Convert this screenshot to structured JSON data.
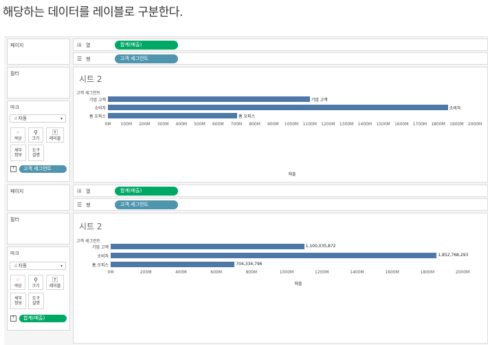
{
  "heading": "해당하는 데이터를 레이블로 구분한다.",
  "panels": [
    {
      "pages_label": "페이지",
      "filters_label": "필터",
      "marks_label": "마크",
      "marks_type": "자동",
      "mark_buttons": {
        "color": "색상",
        "size": "크기",
        "label": "레이블",
        "detail": "세부\n정보",
        "tooltip": "도구\n설명"
      },
      "columns_shelf": {
        "label": "열",
        "pill": "합계(매출)"
      },
      "rows_shelf": {
        "label": "행",
        "pill": "고객 세그먼트"
      },
      "label_pill": "고객 세그먼트",
      "sheet_title": "시트 2",
      "axis_header": "고객 세그먼트",
      "x_title": "매출",
      "ticks": [
        "0M",
        "100M",
        "200M",
        "300M",
        "400M",
        "500M",
        "600M",
        "700M",
        "800M",
        "900M",
        "1000M",
        "1100M",
        "1200M",
        "1300M",
        "1400M",
        "1500M",
        "1600M",
        "1700M",
        "1800M",
        "1900M",
        "2000M"
      ],
      "bar_labels": [
        "기업 고객",
        "소비자",
        "홈 오피스"
      ]
    },
    {
      "pages_label": "페이지",
      "filters_label": "필터",
      "marks_label": "마크",
      "marks_type": "자동",
      "mark_buttons": {
        "color": "색상",
        "size": "크기",
        "label": "레이블",
        "detail": "세부\n정보",
        "tooltip": "도구\n설명"
      },
      "columns_shelf": {
        "label": "열",
        "pill": "합계(매출)"
      },
      "rows_shelf": {
        "label": "행",
        "pill": "고객 세그먼트"
      },
      "label_pill": "합계(매출)",
      "sheet_title": "시트 2",
      "axis_header": "고객 세그먼트",
      "x_title": "매출",
      "ticks": [
        "0M",
        "200M",
        "400M",
        "600M",
        "800M",
        "1000M",
        "1200M",
        "1400M",
        "1600M",
        "1800M",
        "2000M"
      ],
      "bar_labels": [
        "1,100,035,872",
        "1,852,768,293",
        "704,334,796"
      ]
    }
  ],
  "chart_data": [
    {
      "type": "bar",
      "orientation": "horizontal",
      "title": "시트 2",
      "categories": [
        "기업 고객",
        "소비자",
        "홈 오피스"
      ],
      "values": [
        1100035872,
        1852768293,
        704334796
      ],
      "xlabel": "매출",
      "ylabel": "고객 세그먼트",
      "xlim": [
        0,
        2000000000
      ],
      "series_color": "#4e79a7"
    },
    {
      "type": "bar",
      "orientation": "horizontal",
      "title": "시트 2",
      "categories": [
        "기업 고객",
        "소비자",
        "홈 오피스"
      ],
      "values": [
        1100035872,
        1852768293,
        704334796
      ],
      "xlabel": "매출",
      "ylabel": "고객 세그먼트",
      "xlim": [
        0,
        2000000000
      ],
      "series_color": "#4e79a7"
    }
  ],
  "colors": {
    "pill_green": "#00a866",
    "pill_blue": "#4e95ad",
    "bar": "#4e79a7"
  }
}
